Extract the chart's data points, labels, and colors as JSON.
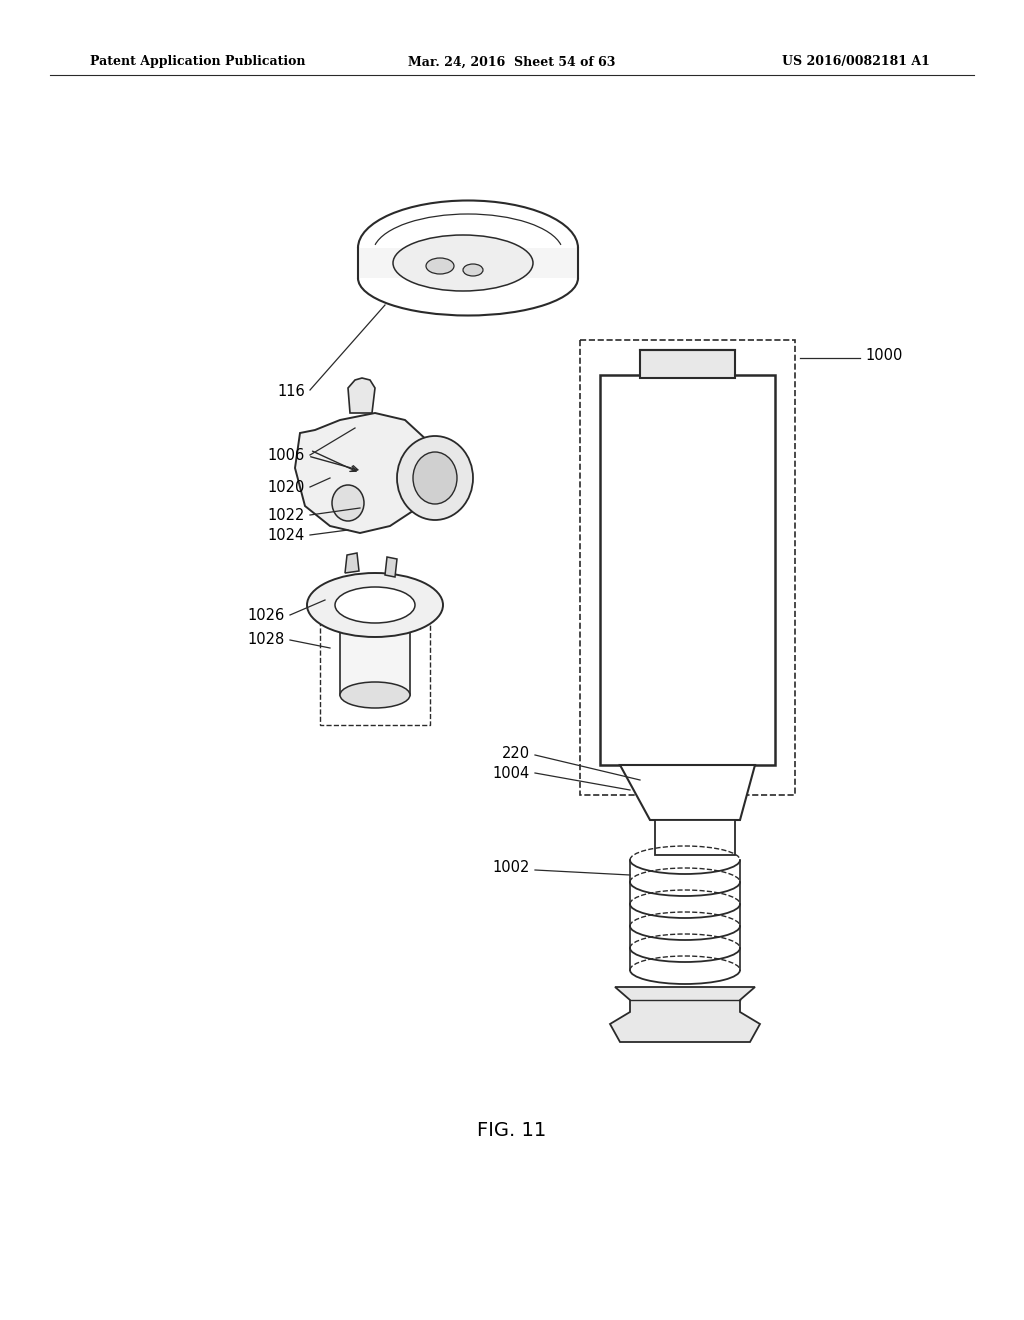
{
  "title": "FIG. 11",
  "header_left": "Patent Application Publication",
  "header_middle": "Mar. 24, 2016  Sheet 54 of 63",
  "header_right": "US 2016/0082181 A1",
  "bg_color": "#ffffff",
  "text_color": "#000000",
  "line_color": "#2a2a2a"
}
